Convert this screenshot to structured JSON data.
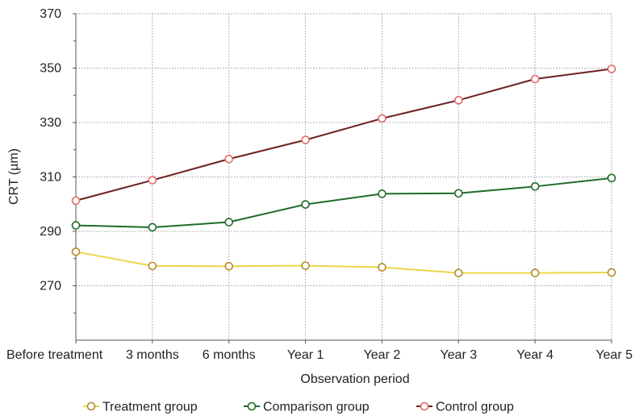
{
  "chart_data": {
    "type": "line",
    "title": "",
    "xlabel": "Observation period",
    "ylabel": "CRT (µm)",
    "categories": [
      "Before treatment",
      "3 months",
      "6 months",
      "Year 1",
      "Year 2",
      "Year 3",
      "Year 4",
      "Year 5"
    ],
    "yticks": [
      270,
      290,
      310,
      330,
      350,
      370
    ],
    "ylim": [
      250,
      370
    ],
    "grid": "horizontal dotted",
    "legend_position": "bottom",
    "series": [
      {
        "name": "Treatment group",
        "line_color": "#ecd64a",
        "marker_color": "#b58a2a",
        "values": [
          282.5,
          277.3,
          277.2,
          277.4,
          276.8,
          274.7,
          274.7,
          274.9
        ]
      },
      {
        "name": "Comparison group",
        "line_color": "#1f6b2a",
        "marker_color": "#1f6b2a",
        "values": [
          292.2,
          291.5,
          293.4,
          299.9,
          303.8,
          304.0,
          306.5,
          309.6
        ]
      },
      {
        "name": "Control group",
        "line_color": "#6f1f1f",
        "marker_color": "#e46a6a",
        "values": [
          301.3,
          308.8,
          316.6,
          323.6,
          331.5,
          338.2,
          346.0,
          349.7
        ]
      }
    ]
  }
}
